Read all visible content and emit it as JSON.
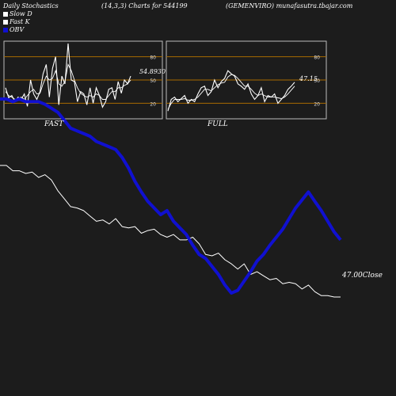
{
  "header": {
    "left": "Daily Stochastics",
    "center": "(14,3,3) Charts for 544199",
    "right": "(GEMENVIRO) munafasutra.tbajar.com"
  },
  "legend": [
    {
      "label": "Slow  D",
      "color": "#ffffff"
    },
    {
      "label": "Fast K",
      "color": "#ffffff"
    },
    {
      "label": "OBV",
      "color": "#1010d0"
    }
  ],
  "chart_data": [
    {
      "type": "line",
      "panel": "FAST",
      "ylim": [
        0,
        100
      ],
      "yticks": [
        20,
        50,
        80
      ],
      "bands": [
        20,
        50,
        80
      ],
      "last_value_label": "54.8930",
      "series": [
        {
          "name": "Fast K",
          "values": [
            40,
            27,
            30,
            22,
            28,
            25,
            32,
            16,
            50,
            32,
            25,
            35,
            58,
            70,
            28,
            65,
            80,
            18,
            55,
            45,
            97,
            50,
            48,
            22,
            35,
            32,
            18,
            40,
            20,
            40,
            30,
            15,
            22,
            38,
            40,
            25,
            48,
            33,
            50,
            45,
            55
          ]
        },
        {
          "name": "Slow  D",
          "values": [
            35,
            30,
            28,
            25,
            26,
            28,
            25,
            30,
            35,
            38,
            32,
            33,
            45,
            55,
            50,
            52,
            62,
            45,
            42,
            48,
            70,
            62,
            50,
            40,
            33,
            30,
            28,
            30,
            28,
            32,
            30,
            25,
            25,
            30,
            35,
            35,
            40,
            40,
            43,
            45,
            50
          ]
        }
      ]
    },
    {
      "type": "line",
      "panel": "FULL",
      "ylim": [
        0,
        100
      ],
      "yticks": [
        20,
        50,
        80
      ],
      "bands": [
        20,
        50,
        80
      ],
      "last_value_label": "47.15",
      "series": [
        {
          "name": "Fast K",
          "values": [
            10,
            25,
            28,
            22,
            26,
            30,
            20,
            25,
            22,
            32,
            40,
            42,
            30,
            35,
            50,
            40,
            48,
            52,
            62,
            58,
            55,
            45,
            42,
            38,
            45,
            32,
            25,
            30,
            40,
            22,
            30,
            28,
            32,
            20,
            25,
            30,
            38,
            42,
            47
          ]
        },
        {
          "name": "Slow  D",
          "values": [
            12,
            20,
            25,
            25,
            25,
            26,
            24,
            24,
            25,
            28,
            33,
            38,
            38,
            36,
            40,
            44,
            46,
            47,
            54,
            57,
            56,
            52,
            47,
            42,
            42,
            38,
            33,
            30,
            32,
            30,
            28,
            28,
            28,
            27,
            26,
            28,
            32,
            37,
            42
          ]
        }
      ]
    },
    {
      "type": "line",
      "panel": "price",
      "close_label": "47.00Close",
      "series": [
        {
          "name": "Close",
          "color": "#ffffff",
          "values": [
            62,
            62,
            58,
            58,
            56,
            57,
            53,
            55,
            51,
            43,
            37,
            31,
            30,
            28,
            24,
            20,
            21,
            18,
            22,
            16,
            15,
            16,
            11,
            13,
            14,
            10,
            8,
            10,
            6,
            6,
            8,
            3,
            -5,
            -6,
            -4,
            -9,
            -12,
            -16,
            -12,
            -20,
            -18,
            -21,
            -24,
            -23,
            -27,
            -26,
            -27,
            -31,
            -28,
            -33,
            -36,
            -36,
            -37,
            -37
          ]
        },
        {
          "name": "OBV",
          "color": "#1010d0",
          "values": [
            112,
            112,
            110,
            112,
            110,
            110,
            110,
            108,
            105,
            102,
            96,
            90,
            88,
            86,
            84,
            80,
            78,
            76,
            74,
            68,
            60,
            50,
            42,
            35,
            30,
            25,
            28,
            20,
            15,
            10,
            2,
            -5,
            -8,
            -14,
            -20,
            -28,
            -34,
            -32,
            -25,
            -18,
            -10,
            -5,
            2,
            8,
            14,
            22,
            30,
            36,
            42,
            35,
            28,
            20,
            12,
            6
          ]
        }
      ]
    }
  ],
  "x_labels": {
    "fast": "FAST",
    "full": "FULL"
  }
}
